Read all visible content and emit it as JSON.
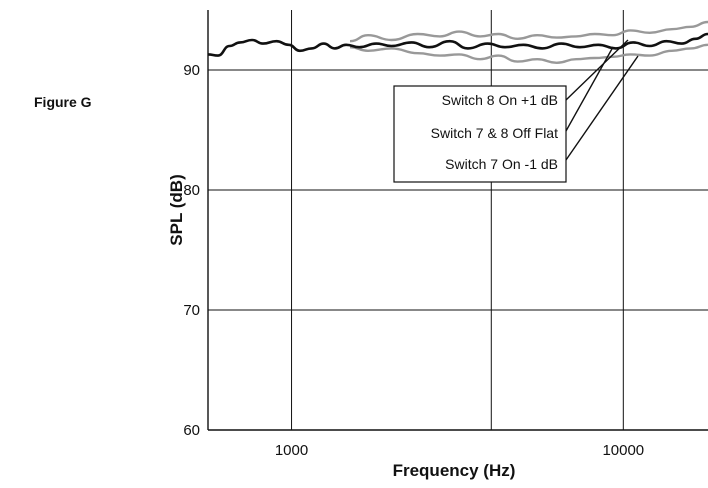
{
  "figure_label": "Figure G",
  "chart_data": {
    "type": "line",
    "xlabel": "Frequency (Hz)",
    "ylabel": "SPL (dB)",
    "x_scale": "log",
    "xlim": [
      560,
      18000
    ],
    "ylim": [
      60,
      95
    ],
    "x_ticks": [
      {
        "value": 1000,
        "label": "1000"
      },
      {
        "value": 10000,
        "label": "10000"
      }
    ],
    "y_ticks": [
      {
        "value": 60,
        "label": "60"
      },
      {
        "value": 70,
        "label": "70"
      },
      {
        "value": 80,
        "label": "80"
      },
      {
        "value": 90,
        "label": "90"
      }
    ],
    "grid": true,
    "series": [
      {
        "name": "Switch 8 On +1 dB",
        "color": "#999999",
        "x": [
          1500,
          1700,
          2000,
          2400,
          2800,
          3200,
          3700,
          4200,
          4800,
          5500,
          6300,
          7200,
          8200,
          9300,
          10500,
          12000,
          14000,
          16000,
          18000
        ],
        "y": [
          92.4,
          92.9,
          92.5,
          93.0,
          92.8,
          93.2,
          92.8,
          93.0,
          92.6,
          92.9,
          92.7,
          92.8,
          93.0,
          92.9,
          93.3,
          93.1,
          93.4,
          93.6,
          94.0
        ]
      },
      {
        "name": "Switch 7 & 8 Off Flat",
        "color": "#111111",
        "x": [
          560,
          600,
          650,
          700,
          760,
          820,
          900,
          980,
          1060,
          1150,
          1250,
          1350,
          1460,
          1600,
          1800,
          2000,
          2300,
          2600,
          3000,
          3400,
          3900,
          4400,
          5000,
          5700,
          6500,
          7400,
          8400,
          9500,
          10700,
          12000,
          13500,
          15000,
          16500,
          18000
        ],
        "y": [
          91.3,
          91.2,
          92.0,
          92.3,
          92.5,
          92.2,
          92.4,
          92.1,
          91.6,
          91.8,
          92.2,
          91.8,
          92.1,
          91.9,
          92.2,
          92.0,
          92.3,
          91.9,
          92.4,
          91.8,
          92.2,
          91.9,
          92.1,
          91.8,
          92.2,
          91.9,
          92.1,
          91.8,
          92.3,
          92.0,
          92.4,
          92.2,
          92.6,
          93.0
        ]
      },
      {
        "name": "Switch 7 On -1 dB",
        "color": "#999999",
        "x": [
          1500,
          1700,
          2000,
          2400,
          2800,
          3200,
          3700,
          4200,
          4800,
          5500,
          6300,
          7200,
          8200,
          9300,
          10500,
          12000,
          14000,
          16000,
          18000
        ],
        "y": [
          91.9,
          91.6,
          91.8,
          91.4,
          91.2,
          91.3,
          90.9,
          91.2,
          90.7,
          90.9,
          90.6,
          90.9,
          91.0,
          91.1,
          91.3,
          91.2,
          91.6,
          91.8,
          92.1
        ]
      }
    ],
    "legend": [
      "Switch 8 On +1 dB",
      "Switch 7 & 8 Off Flat",
      "Switch 7 On -1 dB"
    ]
  }
}
